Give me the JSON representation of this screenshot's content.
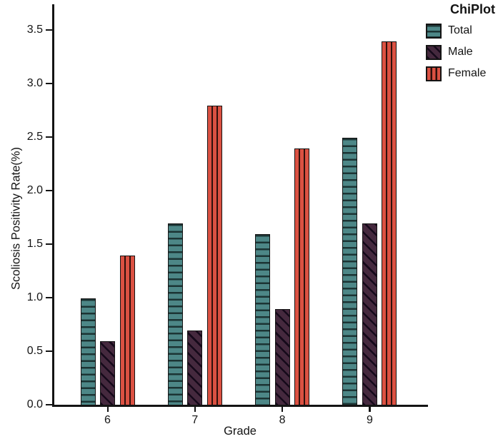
{
  "chart_data": {
    "type": "bar",
    "legend_title": "ChiPlot",
    "legend_position": "top-right",
    "categories": [
      "6",
      "7",
      "8",
      "9"
    ],
    "series": [
      {
        "name": "Total",
        "values": [
          1.0,
          1.7,
          1.6,
          2.5
        ],
        "color": "#4D8787",
        "stripe_color": "#1C3434",
        "pattern": "horizontal"
      },
      {
        "name": "Male",
        "values": [
          0.6,
          0.7,
          0.9,
          1.7
        ],
        "color": "#45293E",
        "stripe_color": "#15091A",
        "pattern": "diagonal"
      },
      {
        "name": "Female",
        "values": [
          1.4,
          2.8,
          2.4,
          3.4
        ],
        "color": "#DB5142",
        "stripe_color": "#2E100C",
        "pattern": "vertical"
      }
    ],
    "xlabel": "Grade",
    "ylabel": "Scoliosis Positivity Rate(%)",
    "ylim": [
      0,
      3.7
    ],
    "yticks": [
      "0.0",
      "0.5",
      "1.0",
      "1.5",
      "2.0",
      "2.5",
      "3.0",
      "3.5"
    ],
    "grid": false
  },
  "colors": {
    "axis": "#141414",
    "text": "#141414",
    "background": "#FFFFFF"
  }
}
